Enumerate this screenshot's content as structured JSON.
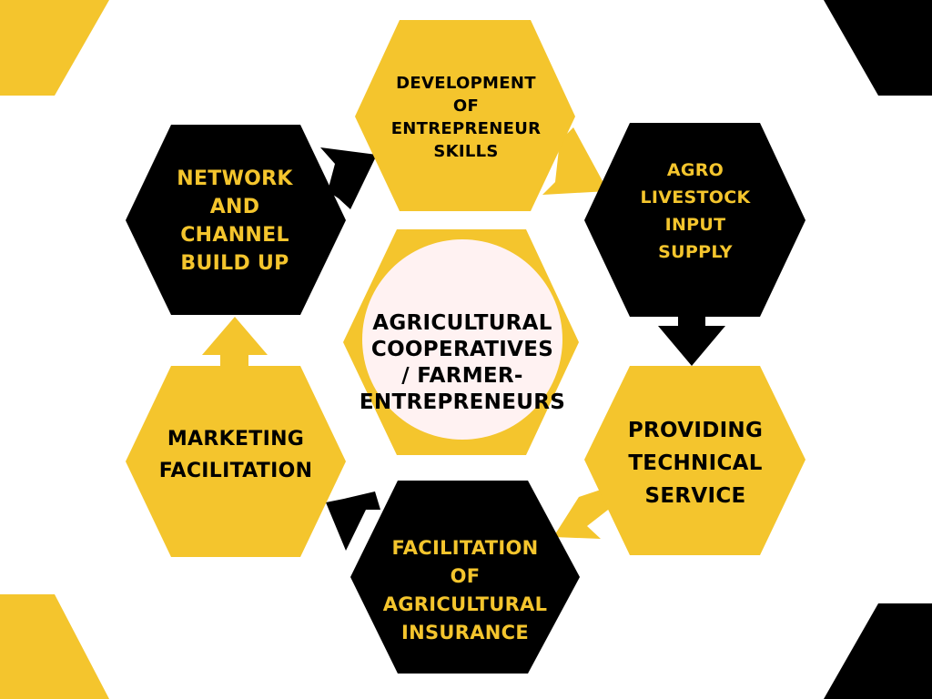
{
  "colors": {
    "yellow": "#f4c52d",
    "black": "#000000",
    "white": "#ffffff",
    "center_fill": "#fff2f2"
  },
  "center": {
    "lines": [
      "AGRICULTURAL",
      "COOPERATIVES",
      "/ FARMER-",
      "ENTREPRENEURS"
    ]
  },
  "nodes": {
    "development": {
      "lines": [
        "DEVELOPMENT",
        "OF",
        "ENTREPRENEUR",
        "SKILLS"
      ]
    },
    "agro": {
      "lines": [
        "AGRO",
        "LIVESTOCK",
        "INPUT",
        "SUPPLY"
      ]
    },
    "technical": {
      "lines": [
        "PROVIDING",
        "TECHNICAL",
        "SERVICE"
      ]
    },
    "insurance": {
      "lines": [
        "FACILITATION",
        "OF",
        "AGRICULTURAL",
        "INSURANCE"
      ]
    },
    "marketing": {
      "lines": [
        "MARKETING",
        "FACILITATION"
      ]
    },
    "network": {
      "lines": [
        "NETWORK",
        "AND",
        "CHANNEL",
        "BUILD UP"
      ]
    }
  }
}
